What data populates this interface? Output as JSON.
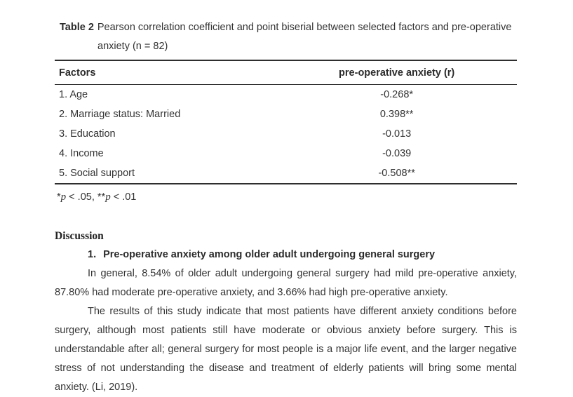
{
  "page": {
    "background": "#ffffff",
    "text_color": "#333333",
    "rule_color": "#2e2e2e"
  },
  "table": {
    "caption_label": "Table 2",
    "caption_line1": "Pearson correlation coefficient and point biserial between selected factors and pre-operative",
    "caption_line2": "anxiety (n = 82)",
    "columns": [
      "Factors",
      "pre-operative anxiety (r)"
    ],
    "rows": [
      {
        "factor": "1. Age",
        "value": "-0.268*"
      },
      {
        "factor": "2. Marriage status: Married",
        "value": "0.398**"
      },
      {
        "factor": "3. Education",
        "value": "-0.013"
      },
      {
        "factor": "4. Income",
        "value": "-0.039"
      },
      {
        "factor": "5. Social support",
        "value": "-0.508**"
      }
    ],
    "footnote_parts": [
      "*",
      "p",
      " < .05, **",
      "p",
      " < .01"
    ]
  },
  "discussion": {
    "heading": "Discussion",
    "subsection_number": "1.",
    "subsection_title": "Pre-operative anxiety among older adult undergoing general surgery",
    "paragraph1": "In general, 8.54% of older adult undergoing general surgery had mild pre-operative anxiety, 87.80% had moderate pre-operative anxiety, and 3.66% had high pre-operative anxiety.",
    "paragraph2": "The results of this study indicate that most patients have different anxiety conditions before surgery, although most patients still have moderate or obvious anxiety before surgery. This is understandable after all; general surgery for most people is a major life event, and the larger negative stress of not understanding the disease and treatment of elderly patients will bring some mental anxiety. (Li, 2019)."
  }
}
